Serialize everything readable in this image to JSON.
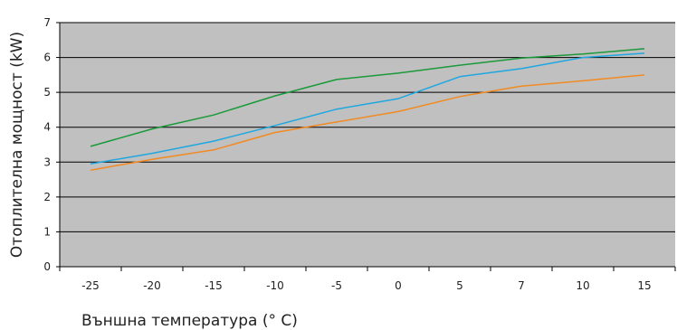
{
  "chart_data": {
    "type": "line",
    "title": "",
    "xlabel": "Външна температура (° C)",
    "ylabel": "Отоплителна мощност (kW)",
    "categories": [
      "-25",
      "-20",
      "-15",
      "-10",
      "-5",
      "0",
      "5",
      "7",
      "10",
      "15"
    ],
    "ylim": [
      0,
      7
    ],
    "yticks": [
      "0",
      "1",
      "2",
      "3",
      "4",
      "5",
      "6",
      "7"
    ],
    "grid": true,
    "legend": "none",
    "background": "#c0c0c0",
    "series": [
      {
        "color": "#1a9a3a",
        "values": [
          3.45,
          3.95,
          4.35,
          4.9,
          5.37,
          5.55,
          5.78,
          5.98,
          6.1,
          6.25
        ]
      },
      {
        "color": "#1ea7e1",
        "values": [
          2.95,
          3.25,
          3.6,
          4.05,
          4.52,
          4.82,
          5.45,
          5.68,
          6.0,
          6.12
        ]
      },
      {
        "color": "#f28a22",
        "values": [
          2.77,
          3.08,
          3.35,
          3.85,
          4.15,
          4.45,
          4.88,
          5.18,
          5.33,
          5.5
        ]
      }
    ]
  }
}
